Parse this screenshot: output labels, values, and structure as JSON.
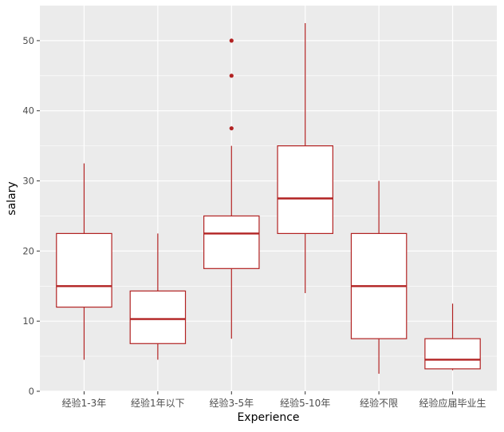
{
  "chart_data": {
    "type": "boxplot",
    "title": "",
    "xlabel": "Experience",
    "ylabel": "salary",
    "ylim": [
      0,
      55
    ],
    "yticks": [
      0,
      10,
      20,
      30,
      40,
      50
    ],
    "grid": true,
    "categories": [
      "经验1-3年",
      "经验1年以下",
      "经验3-5年",
      "经验5-10年",
      "经验不限",
      "经验应届毕业生"
    ],
    "boxes": [
      {
        "category": "经验1-3年",
        "lower": 4.5,
        "q1": 12,
        "median": 15,
        "q3": 22.5,
        "upper": 32.5,
        "outliers": []
      },
      {
        "category": "经验1年以下",
        "lower": 4.5,
        "q1": 6.8,
        "median": 10.3,
        "q3": 14.3,
        "upper": 22.5,
        "outliers": []
      },
      {
        "category": "经验3-5年",
        "lower": 7.5,
        "q1": 17.5,
        "median": 22.5,
        "q3": 25,
        "upper": 35,
        "outliers": [
          37.5,
          45,
          50
        ]
      },
      {
        "category": "经验5-10年",
        "lower": 14,
        "q1": 22.5,
        "median": 27.5,
        "q3": 35,
        "upper": 52.5,
        "outliers": []
      },
      {
        "category": "经验不限",
        "lower": 2.5,
        "q1": 7.5,
        "median": 15,
        "q3": 22.5,
        "upper": 30,
        "outliers": []
      },
      {
        "category": "经验应届毕业生",
        "lower": 3,
        "q1": 3.2,
        "median": 4.5,
        "q3": 7.5,
        "upper": 12.5,
        "outliers": []
      }
    ],
    "colors": {
      "box_line": "#b22222",
      "box_fill": "#ffffff",
      "panel_bg": "#ebebeb",
      "grid": "#ffffff"
    }
  }
}
